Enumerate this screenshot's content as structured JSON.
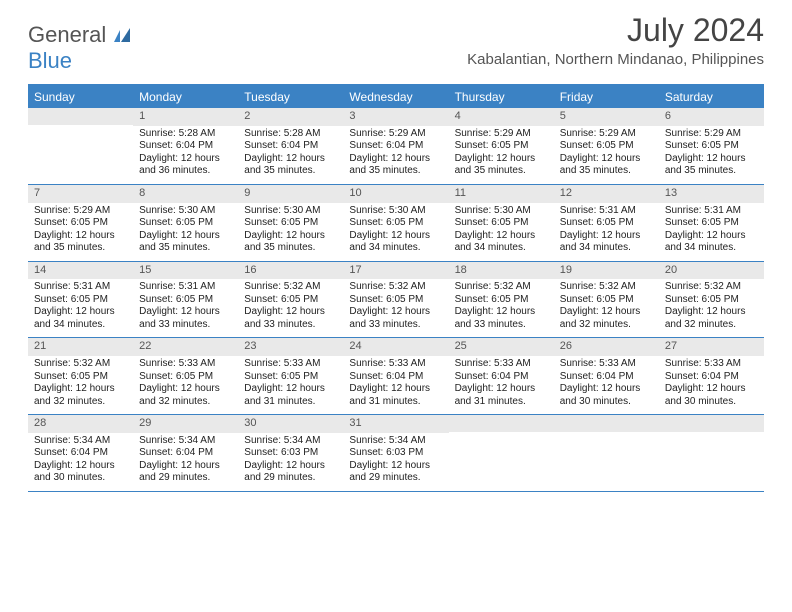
{
  "brand": {
    "general": "General",
    "blue": "Blue"
  },
  "title": "July 2024",
  "location": "Kabalantian, Northern Mindanao, Philippines",
  "colors": {
    "accent": "#3b82c4",
    "header_bg": "#e9e9e9",
    "text": "#222222",
    "muted": "#555555"
  },
  "day_labels": [
    "Sunday",
    "Monday",
    "Tuesday",
    "Wednesday",
    "Thursday",
    "Friday",
    "Saturday"
  ],
  "weeks": [
    [
      null,
      {
        "n": "1",
        "sr": "Sunrise: 5:28 AM",
        "ss": "Sunset: 6:04 PM",
        "d1": "Daylight: 12 hours",
        "d2": "and 36 minutes."
      },
      {
        "n": "2",
        "sr": "Sunrise: 5:28 AM",
        "ss": "Sunset: 6:04 PM",
        "d1": "Daylight: 12 hours",
        "d2": "and 35 minutes."
      },
      {
        "n": "3",
        "sr": "Sunrise: 5:29 AM",
        "ss": "Sunset: 6:04 PM",
        "d1": "Daylight: 12 hours",
        "d2": "and 35 minutes."
      },
      {
        "n": "4",
        "sr": "Sunrise: 5:29 AM",
        "ss": "Sunset: 6:05 PM",
        "d1": "Daylight: 12 hours",
        "d2": "and 35 minutes."
      },
      {
        "n": "5",
        "sr": "Sunrise: 5:29 AM",
        "ss": "Sunset: 6:05 PM",
        "d1": "Daylight: 12 hours",
        "d2": "and 35 minutes."
      },
      {
        "n": "6",
        "sr": "Sunrise: 5:29 AM",
        "ss": "Sunset: 6:05 PM",
        "d1": "Daylight: 12 hours",
        "d2": "and 35 minutes."
      }
    ],
    [
      {
        "n": "7",
        "sr": "Sunrise: 5:29 AM",
        "ss": "Sunset: 6:05 PM",
        "d1": "Daylight: 12 hours",
        "d2": "and 35 minutes."
      },
      {
        "n": "8",
        "sr": "Sunrise: 5:30 AM",
        "ss": "Sunset: 6:05 PM",
        "d1": "Daylight: 12 hours",
        "d2": "and 35 minutes."
      },
      {
        "n": "9",
        "sr": "Sunrise: 5:30 AM",
        "ss": "Sunset: 6:05 PM",
        "d1": "Daylight: 12 hours",
        "d2": "and 35 minutes."
      },
      {
        "n": "10",
        "sr": "Sunrise: 5:30 AM",
        "ss": "Sunset: 6:05 PM",
        "d1": "Daylight: 12 hours",
        "d2": "and 34 minutes."
      },
      {
        "n": "11",
        "sr": "Sunrise: 5:30 AM",
        "ss": "Sunset: 6:05 PM",
        "d1": "Daylight: 12 hours",
        "d2": "and 34 minutes."
      },
      {
        "n": "12",
        "sr": "Sunrise: 5:31 AM",
        "ss": "Sunset: 6:05 PM",
        "d1": "Daylight: 12 hours",
        "d2": "and 34 minutes."
      },
      {
        "n": "13",
        "sr": "Sunrise: 5:31 AM",
        "ss": "Sunset: 6:05 PM",
        "d1": "Daylight: 12 hours",
        "d2": "and 34 minutes."
      }
    ],
    [
      {
        "n": "14",
        "sr": "Sunrise: 5:31 AM",
        "ss": "Sunset: 6:05 PM",
        "d1": "Daylight: 12 hours",
        "d2": "and 34 minutes."
      },
      {
        "n": "15",
        "sr": "Sunrise: 5:31 AM",
        "ss": "Sunset: 6:05 PM",
        "d1": "Daylight: 12 hours",
        "d2": "and 33 minutes."
      },
      {
        "n": "16",
        "sr": "Sunrise: 5:32 AM",
        "ss": "Sunset: 6:05 PM",
        "d1": "Daylight: 12 hours",
        "d2": "and 33 minutes."
      },
      {
        "n": "17",
        "sr": "Sunrise: 5:32 AM",
        "ss": "Sunset: 6:05 PM",
        "d1": "Daylight: 12 hours",
        "d2": "and 33 minutes."
      },
      {
        "n": "18",
        "sr": "Sunrise: 5:32 AM",
        "ss": "Sunset: 6:05 PM",
        "d1": "Daylight: 12 hours",
        "d2": "and 33 minutes."
      },
      {
        "n": "19",
        "sr": "Sunrise: 5:32 AM",
        "ss": "Sunset: 6:05 PM",
        "d1": "Daylight: 12 hours",
        "d2": "and 32 minutes."
      },
      {
        "n": "20",
        "sr": "Sunrise: 5:32 AM",
        "ss": "Sunset: 6:05 PM",
        "d1": "Daylight: 12 hours",
        "d2": "and 32 minutes."
      }
    ],
    [
      {
        "n": "21",
        "sr": "Sunrise: 5:32 AM",
        "ss": "Sunset: 6:05 PM",
        "d1": "Daylight: 12 hours",
        "d2": "and 32 minutes."
      },
      {
        "n": "22",
        "sr": "Sunrise: 5:33 AM",
        "ss": "Sunset: 6:05 PM",
        "d1": "Daylight: 12 hours",
        "d2": "and 32 minutes."
      },
      {
        "n": "23",
        "sr": "Sunrise: 5:33 AM",
        "ss": "Sunset: 6:05 PM",
        "d1": "Daylight: 12 hours",
        "d2": "and 31 minutes."
      },
      {
        "n": "24",
        "sr": "Sunrise: 5:33 AM",
        "ss": "Sunset: 6:04 PM",
        "d1": "Daylight: 12 hours",
        "d2": "and 31 minutes."
      },
      {
        "n": "25",
        "sr": "Sunrise: 5:33 AM",
        "ss": "Sunset: 6:04 PM",
        "d1": "Daylight: 12 hours",
        "d2": "and 31 minutes."
      },
      {
        "n": "26",
        "sr": "Sunrise: 5:33 AM",
        "ss": "Sunset: 6:04 PM",
        "d1": "Daylight: 12 hours",
        "d2": "and 30 minutes."
      },
      {
        "n": "27",
        "sr": "Sunrise: 5:33 AM",
        "ss": "Sunset: 6:04 PM",
        "d1": "Daylight: 12 hours",
        "d2": "and 30 minutes."
      }
    ],
    [
      {
        "n": "28",
        "sr": "Sunrise: 5:34 AM",
        "ss": "Sunset: 6:04 PM",
        "d1": "Daylight: 12 hours",
        "d2": "and 30 minutes."
      },
      {
        "n": "29",
        "sr": "Sunrise: 5:34 AM",
        "ss": "Sunset: 6:04 PM",
        "d1": "Daylight: 12 hours",
        "d2": "and 29 minutes."
      },
      {
        "n": "30",
        "sr": "Sunrise: 5:34 AM",
        "ss": "Sunset: 6:03 PM",
        "d1": "Daylight: 12 hours",
        "d2": "and 29 minutes."
      },
      {
        "n": "31",
        "sr": "Sunrise: 5:34 AM",
        "ss": "Sunset: 6:03 PM",
        "d1": "Daylight: 12 hours",
        "d2": "and 29 minutes."
      },
      null,
      null,
      null
    ]
  ]
}
